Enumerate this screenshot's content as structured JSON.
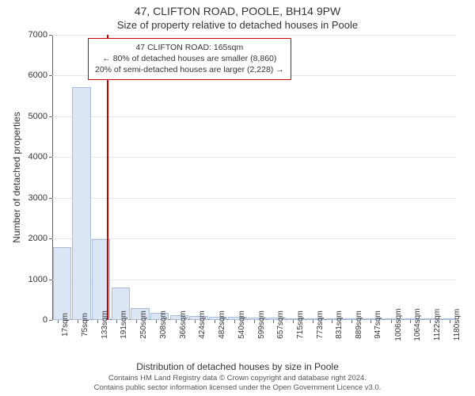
{
  "title": "47, CLIFTON ROAD, POOLE, BH14 9PW",
  "subtitle": "Size of property relative to detached houses in Poole",
  "chart": {
    "type": "histogram",
    "background_color": "#ffffff",
    "grid_color": "#e6e6e6",
    "axis_color": "#666666",
    "bar_fill": "#dbe5f4",
    "bar_border": "#a9bdd9",
    "bar_width_ratio": 0.95,
    "marker_color": "#cc0000",
    "marker_x": 165,
    "ylim": [
      0,
      7000
    ],
    "ytick_step": 1000,
    "xlim": [
      0,
      1200
    ],
    "x_ticks": [
      17,
      75,
      133,
      191,
      250,
      308,
      366,
      424,
      482,
      540,
      599,
      657,
      715,
      773,
      831,
      889,
      947,
      1006,
      1064,
      1122,
      1180
    ],
    "x_tick_suffix": "sqm",
    "y_label": "Number of detached properties",
    "x_label": "Distribution of detached houses by size in Poole",
    "label_fontsize": 12,
    "tick_fontsize": 11,
    "bins": [
      {
        "x_start": 0,
        "x_end": 58,
        "count": 1780
      },
      {
        "x_start": 58,
        "x_end": 116,
        "count": 5720
      },
      {
        "x_start": 116,
        "x_end": 174,
        "count": 1990
      },
      {
        "x_start": 174,
        "x_end": 232,
        "count": 800
      },
      {
        "x_start": 232,
        "x_end": 290,
        "count": 290
      },
      {
        "x_start": 290,
        "x_end": 348,
        "count": 180
      },
      {
        "x_start": 348,
        "x_end": 406,
        "count": 120
      },
      {
        "x_start": 406,
        "x_end": 464,
        "count": 90
      },
      {
        "x_start": 464,
        "x_end": 522,
        "count": 80
      },
      {
        "x_start": 522,
        "x_end": 580,
        "count": 70
      },
      {
        "x_start": 580,
        "x_end": 638,
        "count": 60
      },
      {
        "x_start": 638,
        "x_end": 696,
        "count": 55
      },
      {
        "x_start": 696,
        "x_end": 754,
        "count": 40
      },
      {
        "x_start": 754,
        "x_end": 812,
        "count": 15
      },
      {
        "x_start": 812,
        "x_end": 870,
        "count": 10
      },
      {
        "x_start": 870,
        "x_end": 928,
        "count": 8
      },
      {
        "x_start": 928,
        "x_end": 986,
        "count": 15
      },
      {
        "x_start": 986,
        "x_end": 1044,
        "count": 5
      },
      {
        "x_start": 1044,
        "x_end": 1102,
        "count": 5
      },
      {
        "x_start": 1102,
        "x_end": 1160,
        "count": 5
      },
      {
        "x_start": 1160,
        "x_end": 1200,
        "count": 3
      }
    ]
  },
  "annotation": {
    "border_color": "#cc0000",
    "line1": "47 CLIFTON ROAD: 165sqm",
    "line2": "← 80% of detached houses are smaller (8,860)",
    "line3": "20% of semi-detached houses are larger (2,228) →",
    "fontsize": 10.5
  },
  "footer": {
    "line1": "Contains HM Land Registry data © Crown copyright and database right 2024.",
    "line2": "Contains public sector information licensed under the Open Government Licence v3.0."
  }
}
